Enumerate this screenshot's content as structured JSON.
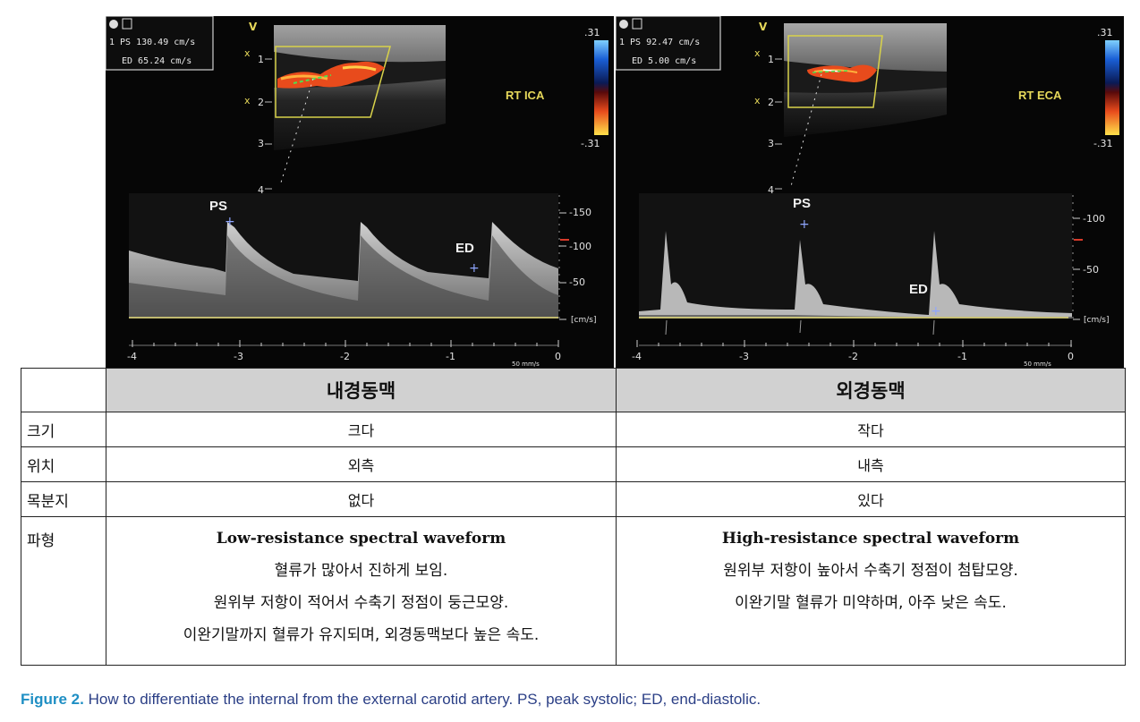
{
  "panels": [
    {
      "id": "left",
      "measurements": {
        "line1": "1 PS 130.49 cm/s",
        "line2": "ED 65.24 cm/s"
      },
      "vessel_label": "RT ICA",
      "scale_top": ".31",
      "scale_bottom": "-.31",
      "depth_marks": [
        "V",
        "x",
        "1",
        "x",
        "2",
        "3",
        "4"
      ],
      "ps_label": "PS",
      "ed_label": "ED",
      "velocity_ticks": [
        "-150",
        "-100",
        "-50",
        "[cm/s]"
      ],
      "time_ticks": [
        "-4",
        "-3",
        "-2",
        "-1",
        "0"
      ],
      "sweep": "50 mm/s",
      "colors": {
        "flow": "#e84b1c",
        "box": "#d8d24a",
        "baseline": "#e6dc7a",
        "marker": "#8fa6ff"
      }
    },
    {
      "id": "right",
      "measurements": {
        "line1": "1 PS 92.47 cm/s",
        "line2": "ED 5.00 cm/s"
      },
      "vessel_label": "RT ECA",
      "scale_top": ".31",
      "scale_bottom": "-.31",
      "depth_marks": [
        "V",
        "x",
        "1",
        "x",
        "2",
        "3",
        "4"
      ],
      "ps_label": "PS",
      "ed_label": "ED",
      "velocity_ticks": [
        "-100",
        "-50",
        "[cm/s]"
      ],
      "time_ticks": [
        "-4",
        "-3",
        "-2",
        "-1",
        "0"
      ],
      "sweep": "50 mm/s",
      "colors": {
        "flow": "#e84b1c",
        "box": "#d8d24a",
        "baseline": "#e6dc7a",
        "marker": "#8fa6ff"
      }
    }
  ],
  "table": {
    "header_ica": "내경동맥",
    "header_eca": "외경동맥",
    "rows": [
      {
        "label": "크기",
        "ica": "크다",
        "eca": "작다"
      },
      {
        "label": "위치",
        "ica": "외측",
        "eca": "내측"
      },
      {
        "label": "목분지",
        "ica": "없다",
        "eca": "있다"
      }
    ],
    "waveform": {
      "label": "파형",
      "ica_title": "Low-resistance spectral waveform",
      "ica_lines": [
        "혈류가 많아서 진하게 보임.",
        "원위부 저항이 적어서 수축기 정점이 둥근모양.",
        "이완기말까지 혈류가 유지되며, 외경동맥보다 높은 속도."
      ],
      "eca_title": "High-resistance spectral waveform",
      "eca_lines": [
        "원위부 저항이 높아서 수축기 정점이 첨탑모양.",
        "이완기말 혈류가 미약하며,  아주 낮은 속도."
      ]
    }
  },
  "caption": {
    "figure": "Figure 2.",
    "text": " How to differentiate the internal from the external carotid artery. PS, peak systolic; ED, end-diastolic."
  }
}
